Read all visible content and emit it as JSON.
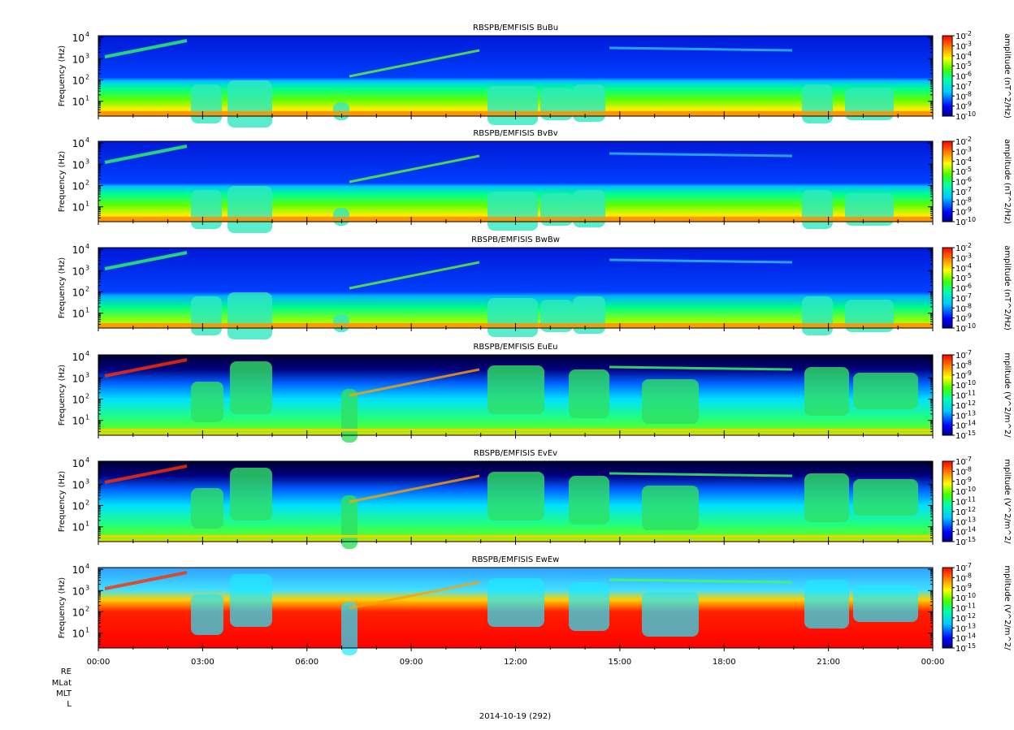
{
  "figure": {
    "date_label": "2014-10-19 (292)",
    "ephemeris_labels": [
      "RE",
      "MLat",
      "MLT",
      "L"
    ],
    "x_tick_labels": [
      "00:00",
      "03:00",
      "06:00",
      "09:00",
      "12:00",
      "15:00",
      "18:00",
      "21:00",
      "00:00"
    ]
  },
  "chart_data": [
    {
      "type": "heatmap",
      "title": "RBSPB/EMFISIS  BuBu",
      "ylabel": "Frequency (Hz)",
      "colorbar_label": "amplitude (nT^2/Hz)",
      "yscale": "log",
      "ylim": [
        2,
        12000
      ],
      "y_tick_labels": [
        "10",
        "10",
        "10",
        "10"
      ],
      "y_tick_exponents": [
        "1",
        "2",
        "3",
        "4"
      ],
      "x_range_hours": [
        0,
        24
      ],
      "colorbar": {
        "min_exp": -10,
        "max_exp": -2,
        "tick_labels": [
          "10",
          "10",
          "10",
          "10",
          "10",
          "10",
          "10",
          "10",
          "10"
        ],
        "tick_exponents": [
          "-10",
          "-9",
          "-8",
          "-7",
          "-6",
          "-5",
          "-4",
          "-3",
          "-2"
        ]
      }
    },
    {
      "type": "heatmap",
      "title": "RBSPB/EMFISIS  BvBv",
      "ylabel": "Frequency (Hz)",
      "colorbar_label": "amplitude (nT^2/Hz)",
      "yscale": "log",
      "ylim": [
        2,
        12000
      ],
      "y_tick_labels": [
        "10",
        "10",
        "10",
        "10"
      ],
      "y_tick_exponents": [
        "1",
        "2",
        "3",
        "4"
      ],
      "x_range_hours": [
        0,
        24
      ],
      "colorbar": {
        "min_exp": -10,
        "max_exp": -2,
        "tick_labels": [
          "10",
          "10",
          "10",
          "10",
          "10",
          "10",
          "10",
          "10",
          "10"
        ],
        "tick_exponents": [
          "-10",
          "-9",
          "-8",
          "-7",
          "-6",
          "-5",
          "-4",
          "-3",
          "-2"
        ]
      }
    },
    {
      "type": "heatmap",
      "title": "RBSPB/EMFISIS  BwBw",
      "ylabel": "Frequency (Hz)",
      "colorbar_label": "amplitude (nT^2/Hz)",
      "yscale": "log",
      "ylim": [
        2,
        12000
      ],
      "y_tick_labels": [
        "10",
        "10",
        "10",
        "10"
      ],
      "y_tick_exponents": [
        "1",
        "2",
        "3",
        "4"
      ],
      "x_range_hours": [
        0,
        24
      ],
      "colorbar": {
        "min_exp": -10,
        "max_exp": -2,
        "tick_labels": [
          "10",
          "10",
          "10",
          "10",
          "10",
          "10",
          "10",
          "10",
          "10"
        ],
        "tick_exponents": [
          "-10",
          "-9",
          "-8",
          "-7",
          "-6",
          "-5",
          "-4",
          "-3",
          "-2"
        ]
      }
    },
    {
      "type": "heatmap",
      "title": "RBSPB/EMFISIS  EuEu",
      "ylabel": "Frequency (Hz)",
      "colorbar_label": "mplitude (V^2/m^2/",
      "yscale": "log",
      "ylim": [
        2,
        12000
      ],
      "y_tick_labels": [
        "10",
        "10",
        "10",
        "10"
      ],
      "y_tick_exponents": [
        "1",
        "2",
        "3",
        "4"
      ],
      "x_range_hours": [
        0,
        24
      ],
      "colorbar": {
        "min_exp": -15,
        "max_exp": -7,
        "tick_labels": [
          "10",
          "10",
          "10",
          "10",
          "10",
          "10",
          "10",
          "10",
          "10"
        ],
        "tick_exponents": [
          "-15",
          "-14",
          "-13",
          "-12",
          "-11",
          "-10",
          "-9",
          "-8",
          "-7"
        ]
      }
    },
    {
      "type": "heatmap",
      "title": "RBSPB/EMFISIS  EvEv",
      "ylabel": "Frequency (Hz)",
      "colorbar_label": "mplitude (V^2/m^2/",
      "yscale": "log",
      "ylim": [
        2,
        12000
      ],
      "y_tick_labels": [
        "10",
        "10",
        "10",
        "10"
      ],
      "y_tick_exponents": [
        "1",
        "2",
        "3",
        "4"
      ],
      "x_range_hours": [
        0,
        24
      ],
      "colorbar": {
        "min_exp": -15,
        "max_exp": -7,
        "tick_labels": [
          "10",
          "10",
          "10",
          "10",
          "10",
          "10",
          "10",
          "10",
          "10"
        ],
        "tick_exponents": [
          "-15",
          "-14",
          "-13",
          "-12",
          "-11",
          "-10",
          "-9",
          "-8",
          "-7"
        ]
      }
    },
    {
      "type": "heatmap",
      "title": "RBSPB/EMFISIS  EwEw",
      "ylabel": "Frequency (Hz)",
      "colorbar_label": "mplitude (V^2/m^2/",
      "yscale": "log",
      "ylim": [
        2,
        12000
      ],
      "y_tick_labels": [
        "10",
        "10",
        "10",
        "10"
      ],
      "y_tick_exponents": [
        "1",
        "2",
        "3",
        "4"
      ],
      "x_range_hours": [
        0,
        24
      ],
      "colorbar": {
        "min_exp": -15,
        "max_exp": -7,
        "tick_labels": [
          "10",
          "10",
          "10",
          "10",
          "10",
          "10",
          "10",
          "10",
          "10"
        ],
        "tick_exponents": [
          "-15",
          "-14",
          "-13",
          "-12",
          "-11",
          "-10",
          "-9",
          "-8",
          "-7"
        ]
      }
    }
  ]
}
